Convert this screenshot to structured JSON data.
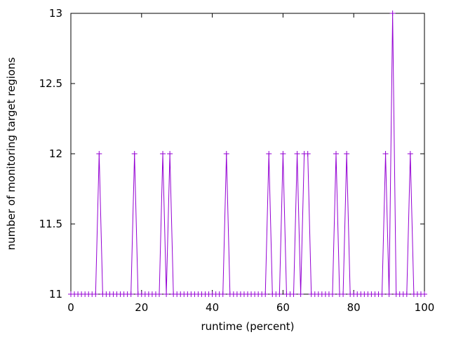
{
  "chart_data": {
    "type": "line",
    "title": "",
    "xlabel": "runtime (percent)",
    "ylabel": "number of monitoring target regions",
    "xlim": [
      0,
      100
    ],
    "ylim": [
      11,
      13
    ],
    "xticks": [
      0,
      20,
      40,
      60,
      80,
      100
    ],
    "yticks": [
      11,
      11.5,
      12,
      12.5,
      13
    ],
    "xtick_labels": [
      "0",
      "20",
      "40",
      "60",
      "80",
      "100"
    ],
    "ytick_labels": [
      "11",
      "11.5",
      "12",
      "12.5",
      "13"
    ],
    "grid": false,
    "legend": "none",
    "series": [
      {
        "color": "#9400d3",
        "marker": "plus",
        "x": [
          0,
          1,
          2,
          3,
          4,
          5,
          6,
          7,
          8,
          9,
          10,
          11,
          12,
          13,
          14,
          15,
          16,
          17,
          18,
          19,
          20,
          21,
          22,
          23,
          24,
          25,
          26,
          27,
          28,
          29,
          30,
          31,
          32,
          33,
          34,
          35,
          36,
          37,
          38,
          39,
          40,
          41,
          42,
          43,
          44,
          45,
          46,
          47,
          48,
          49,
          50,
          51,
          52,
          53,
          54,
          55,
          56,
          57,
          58,
          59,
          60,
          61,
          62,
          63,
          64,
          65,
          66,
          67,
          68,
          69,
          70,
          71,
          72,
          73,
          74,
          75,
          76,
          77,
          78,
          79,
          80,
          81,
          82,
          83,
          84,
          85,
          86,
          87,
          88,
          89,
          90,
          91,
          92,
          93,
          94,
          95,
          96,
          97,
          98,
          99,
          100
        ],
        "y": [
          11,
          11,
          11,
          11,
          11,
          11,
          11,
          11,
          12,
          11,
          11,
          11,
          11,
          11,
          11,
          11,
          11,
          11,
          12,
          11,
          11,
          11,
          11,
          11,
          11,
          11,
          12,
          11,
          12,
          11,
          11,
          11,
          11,
          11,
          11,
          11,
          11,
          11,
          11,
          11,
          11,
          11,
          11,
          11,
          12,
          11,
          11,
          11,
          11,
          11,
          11,
          11,
          11,
          11,
          11,
          11,
          12,
          11,
          11,
          11,
          12,
          11,
          11,
          11,
          12,
          11,
          12,
          12,
          11,
          11,
          11,
          11,
          11,
          11,
          11,
          12,
          11,
          11,
          12,
          11,
          11,
          11,
          11,
          11,
          11,
          11,
          11,
          11,
          11,
          12,
          11,
          13,
          11,
          11,
          11,
          11,
          12,
          11,
          11,
          11,
          11
        ]
      }
    ]
  }
}
